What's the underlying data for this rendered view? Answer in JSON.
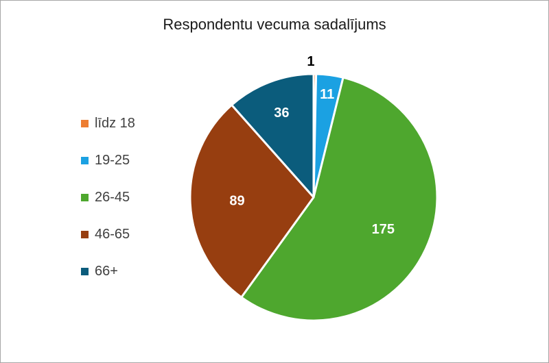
{
  "chart_data": {
    "type": "pie",
    "title": "Respondentu vecuma sadalījums",
    "legend_position": "left",
    "slices": [
      {
        "label": "līdz 18",
        "value": 1,
        "color": "#ED7D31",
        "label_color": "#000000"
      },
      {
        "label": "19-25",
        "value": 11,
        "color": "#1BA1E2",
        "label_color": "#ffffff"
      },
      {
        "label": "26-45",
        "value": 175,
        "color": "#4EA72E",
        "label_color": "#ffffff"
      },
      {
        "label": "46-65",
        "value": 89,
        "color": "#973E10",
        "label_color": "#ffffff"
      },
      {
        "label": "66+",
        "value": 36,
        "color": "#0B5C7C",
        "label_color": "#ffffff"
      }
    ]
  }
}
